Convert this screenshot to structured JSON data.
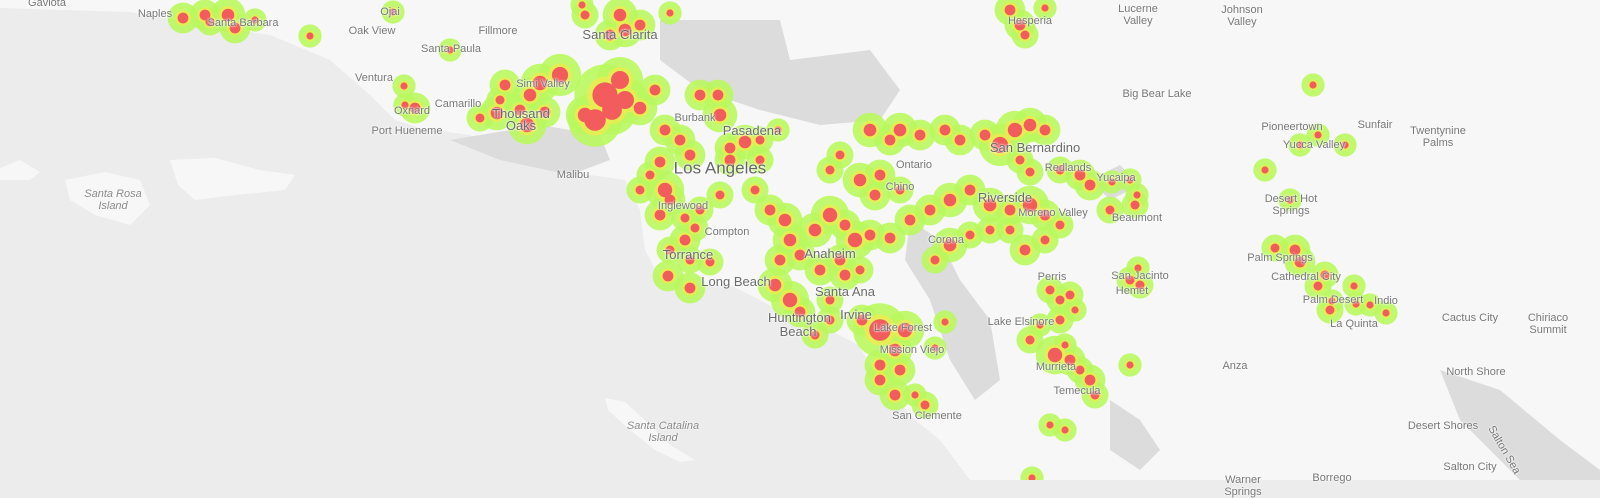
{
  "map": {
    "type": "heatmap",
    "colors": {
      "ocean": "#ececec",
      "land": "#f7f7f7",
      "forest": "#dcdcdc",
      "heat_low": "#b7f55a",
      "heat_mid": "#e8e84a",
      "heat_high": "#f25c5c"
    },
    "labels": {
      "gaviota": "Gaviota",
      "naples": "Naples",
      "santa_barbara": "Santa Barbara",
      "ojai": "Ojai",
      "oak_view": "Oak View",
      "fillmore": "Fillmore",
      "santa_clarita": "Santa Clarita",
      "santa_paula": "Santa Paula",
      "ventura": "Ventura",
      "simi_valley": "Simi Valley",
      "camarillo": "Camarillo",
      "oxnard": "Oxnard",
      "thousand_oaks": "Thousand Oaks",
      "port_hueneme": "Port Hueneme",
      "burbank": "Burbank",
      "pasadena": "Pasadena",
      "los_angeles": "Los Angeles",
      "malibu": "Malibu",
      "santa_rosa_island": "Santa Rosa Island",
      "inglewood": "Inglewood",
      "compton": "Compton",
      "torrance": "Torrance",
      "long_beach": "Long Beach",
      "anaheim": "Anaheim",
      "santa_ana": "Santa Ana",
      "irvine": "Irvine",
      "huntington_beach": "Huntington Beach",
      "lake_forest": "Lake Forest",
      "mission_viejo": "Mission Viejo",
      "san_clemente": "San Clemente",
      "santa_catalina_island": "Santa Catalina Island",
      "hesperia": "Hesperia",
      "lucerne_valley": "Lucerne Valley",
      "johnson_valley": "Johnson Valley",
      "big_bear_lake": "Big Bear Lake",
      "ontario": "Ontario",
      "chino": "Chino",
      "san_bernardino": "San Bernardino",
      "redlands": "Redlands",
      "yucaipa": "Yucaipa",
      "riverside": "Riverside",
      "moreno_valley": "Moreno Valley",
      "beaumont": "Beaumont",
      "pioneertown": "Pioneertown",
      "sunfair": "Sunfair",
      "twentynine_palms": "Twentynine Palms",
      "yucca_valley": "Yucca Valley",
      "desert_hot_springs": "Desert Hot Springs",
      "palm_springs": "Palm Springs",
      "cathedral_city": "Cathedral City",
      "palm_desert": "Palm Desert",
      "indio": "Indio",
      "la_quinta": "La Quinta",
      "cactus_city": "Cactus City",
      "chiriaco_summit": "Chiriaco Summit",
      "corona": "Corona",
      "perris": "Perris",
      "san_jacinto": "San Jacinto",
      "hemet": "Hemet",
      "lake_elsinore": "Lake Elsinore",
      "murrieta": "Murrieta",
      "temecula": "Temecula",
      "anza": "Anza",
      "north_shore": "North Shore",
      "desert_shores": "Desert Shores",
      "salton_sea": "Salton Sea",
      "salton_city": "Salton City",
      "warner_springs": "Warner Springs",
      "borrego": "Borrego"
    }
  }
}
